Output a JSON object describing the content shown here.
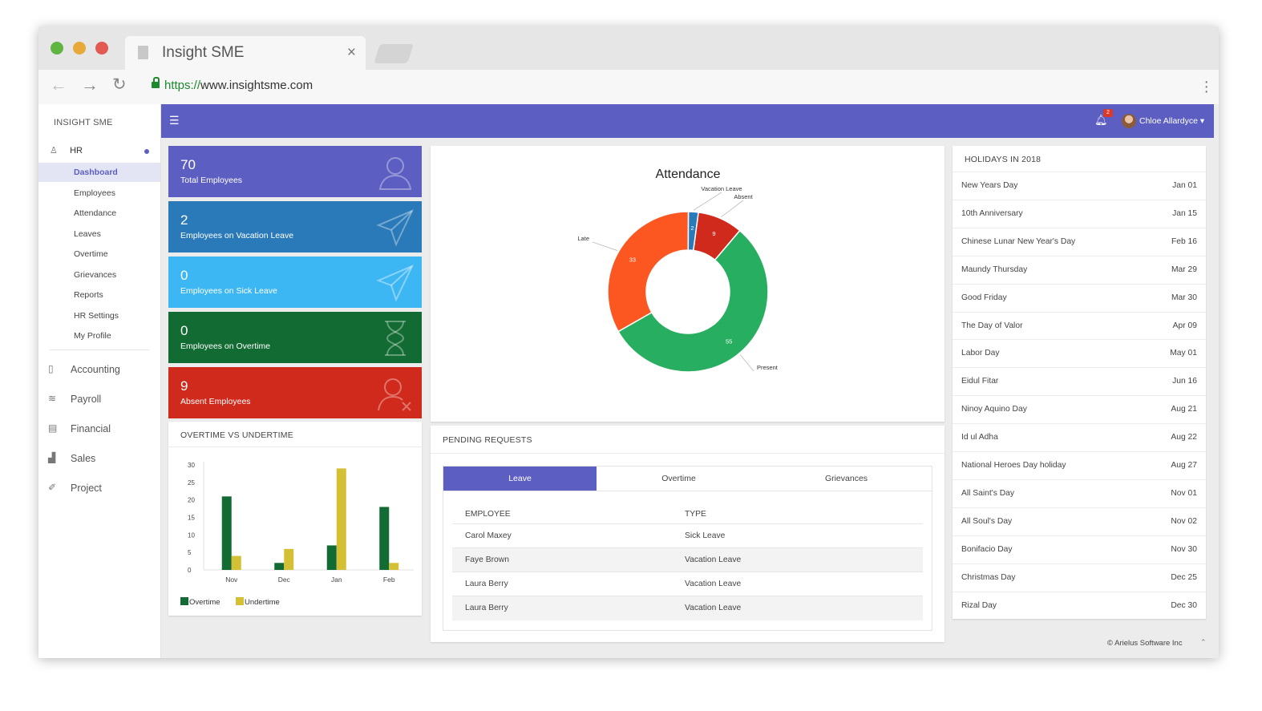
{
  "browser": {
    "tab_title": "Insight SME",
    "tab_close": "×",
    "url_scheme": "https://",
    "url_rest": "www.insightsme.com",
    "window_buttons": {
      "green": "#5eb540",
      "yellow": "#e7a93a",
      "red": "#e25a52"
    }
  },
  "sidebar": {
    "brand": "INSIGHT SME",
    "hr_label": "HR",
    "hr_items": [
      {
        "label": "Dashboard",
        "active": true
      },
      {
        "label": "Employees"
      },
      {
        "label": "Attendance"
      },
      {
        "label": "Leaves"
      },
      {
        "label": "Overtime"
      },
      {
        "label": "Grievances"
      },
      {
        "label": "Reports"
      },
      {
        "label": "HR Settings"
      },
      {
        "label": "My Profile"
      }
    ],
    "main_items": [
      {
        "label": "Accounting",
        "icon": "accounting-icon"
      },
      {
        "label": "Payroll",
        "icon": "payroll-icon"
      },
      {
        "label": "Financial",
        "icon": "financial-icon"
      },
      {
        "label": "Sales",
        "icon": "sales-icon"
      },
      {
        "label": "Project",
        "icon": "project-icon"
      }
    ]
  },
  "topbar": {
    "notification_count": "2",
    "user_name": "Chloe Allardyce",
    "color": "#5c5fc1"
  },
  "stats": [
    {
      "value": "70",
      "label": "Total Employees",
      "color": "#5c5fc1",
      "icon": "user-icon"
    },
    {
      "value": "2",
      "label": "Employees on Vacation Leave",
      "color": "#2a7ab9",
      "icon": "paper-plane-icon"
    },
    {
      "value": "0",
      "label": "Employees on Sick Leave",
      "color": "#3db6f4",
      "icon": "paper-plane-icon"
    },
    {
      "value": "0",
      "label": "Employees on Overtime",
      "color": "#126b32",
      "icon": "hourglass-icon"
    },
    {
      "value": "9",
      "label": "Absent Employees",
      "color": "#d02a1c",
      "icon": "user-remove-icon"
    }
  ],
  "overtime_card": {
    "title": "OVERTIME VS UNDERTIME"
  },
  "attendance_card": {},
  "pending": {
    "title": "PENDING REQUESTS",
    "tabs": [
      "Leave",
      "Overtime",
      "Grievances"
    ],
    "columns": [
      "EMPLOYEE",
      "TYPE"
    ],
    "rows": [
      {
        "employee": "Carol Maxey",
        "type": "Sick Leave"
      },
      {
        "employee": "Faye Brown",
        "type": "Vacation Leave"
      },
      {
        "employee": "Laura Berry",
        "type": "Vacation Leave"
      },
      {
        "employee": "Laura Berry",
        "type": "Vacation Leave"
      }
    ]
  },
  "holidays": {
    "title": "HOLIDAYS IN 2018",
    "items": [
      {
        "name": "New Years Day",
        "date": "Jan 01"
      },
      {
        "name": "10th Anniversary",
        "date": "Jan 15"
      },
      {
        "name": "Chinese Lunar New Year's Day",
        "date": "Feb 16"
      },
      {
        "name": "Maundy Thursday",
        "date": "Mar 29"
      },
      {
        "name": "Good Friday",
        "date": "Mar 30"
      },
      {
        "name": "The Day of Valor",
        "date": "Apr 09"
      },
      {
        "name": "Labor Day",
        "date": "May 01"
      },
      {
        "name": "Eidul Fitar",
        "date": "Jun 16"
      },
      {
        "name": "Ninoy Aquino Day",
        "date": "Aug 21"
      },
      {
        "name": "Id ul Adha",
        "date": "Aug 22"
      },
      {
        "name": "National Heroes Day holiday",
        "date": "Aug 27"
      },
      {
        "name": "All Saint's Day",
        "date": "Nov 01"
      },
      {
        "name": "All Soul's Day",
        "date": "Nov 02"
      },
      {
        "name": "Bonifacio Day",
        "date": "Nov 30"
      },
      {
        "name": "Christmas Day",
        "date": "Dec 25"
      },
      {
        "name": "Rizal Day",
        "date": "Dec 30"
      }
    ]
  },
  "footer": {
    "copyright": "© Arielus Software Inc"
  },
  "chart_data": [
    {
      "type": "bar",
      "categories": [
        "Nov",
        "Dec",
        "Jan",
        "Feb"
      ],
      "series": [
        {
          "name": "Overtime",
          "color": "#126b32",
          "values": [
            21,
            2,
            7,
            18
          ]
        },
        {
          "name": "Undertime",
          "color": "#d4c035",
          "values": [
            4,
            6,
            29,
            2
          ]
        }
      ],
      "ylim": [
        0,
        30
      ],
      "yticks": [
        0,
        5,
        10,
        15,
        20,
        25,
        30
      ],
      "grid": false,
      "legend": "bottom-left"
    },
    {
      "type": "pie",
      "title": "Attendance",
      "donut": true,
      "slices": [
        {
          "label": "Vacation Leave",
          "value": 2,
          "color": "#2a7ab9"
        },
        {
          "label": "Absent",
          "value": 9,
          "color": "#d02a1c"
        },
        {
          "label": "Present",
          "value": 55,
          "color": "#27ae60"
        },
        {
          "label": "Late",
          "value": 33,
          "color": "#fc5720"
        }
      ]
    }
  ]
}
